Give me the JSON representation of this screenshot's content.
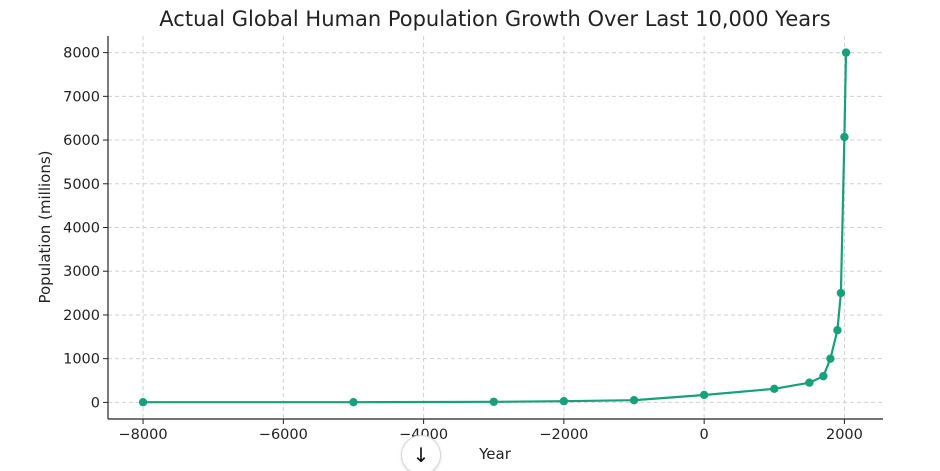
{
  "chart_data": {
    "type": "line",
    "title": "Actual Global Human Population Growth Over Last 10,000 Years",
    "xlabel": "Year",
    "ylabel": "Population (millions)",
    "xlim": [
      -8500,
      2550
    ],
    "ylim": [
      -380,
      8380
    ],
    "x_ticks": [
      -8000,
      -6000,
      -4000,
      -2000,
      0,
      2000
    ],
    "y_ticks": [
      0,
      1000,
      2000,
      3000,
      4000,
      5000,
      6000,
      7000,
      8000
    ],
    "grid": true,
    "legend": "none",
    "series": [
      {
        "color": "#17a07a",
        "marker": "circle",
        "x": [
          -8000,
          -5000,
          -3000,
          -2000,
          -1000,
          0,
          1000,
          1500,
          1700,
          1800,
          1900,
          1950,
          2000,
          2023
        ],
        "values": [
          5,
          5,
          14,
          27,
          50,
          170,
          310,
          450,
          600,
          1000,
          1650,
          2500,
          6070,
          8000
        ]
      }
    ]
  },
  "scroll_button": {
    "icon": "arrow-down-icon",
    "glyph": "↓"
  }
}
